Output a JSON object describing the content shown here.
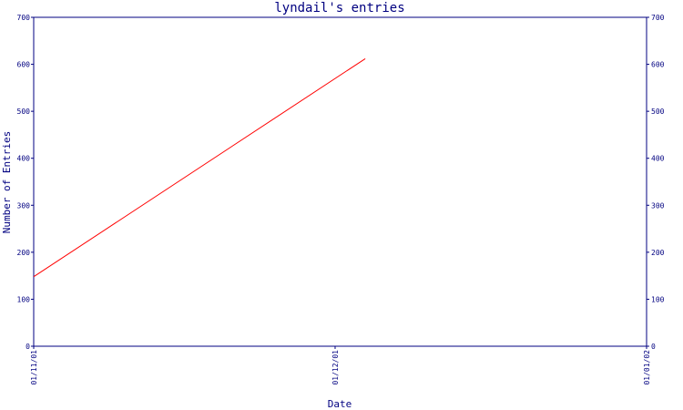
{
  "chart_data": {
    "type": "line",
    "title": "lyndail's entries",
    "xlabel": "Date",
    "ylabel": "Number of Entries",
    "x_ticks": [
      "01/11/01",
      "01/12/01",
      "01/01/02"
    ],
    "x_tick_dates": [
      "2001-11-01",
      "2001-12-01",
      "2002-01-01"
    ],
    "ylim": [
      0,
      700
    ],
    "y_ticks": [
      0,
      100,
      200,
      300,
      400,
      500,
      600,
      700
    ],
    "y_axis_right_mirror": true,
    "grid": false,
    "colors": {
      "axes": "#000080",
      "series": "#ff0000"
    },
    "series": [
      {
        "x": [
          "2001-11-01",
          "2001-12-04"
        ],
        "y": [
          148,
          612
        ]
      }
    ]
  }
}
